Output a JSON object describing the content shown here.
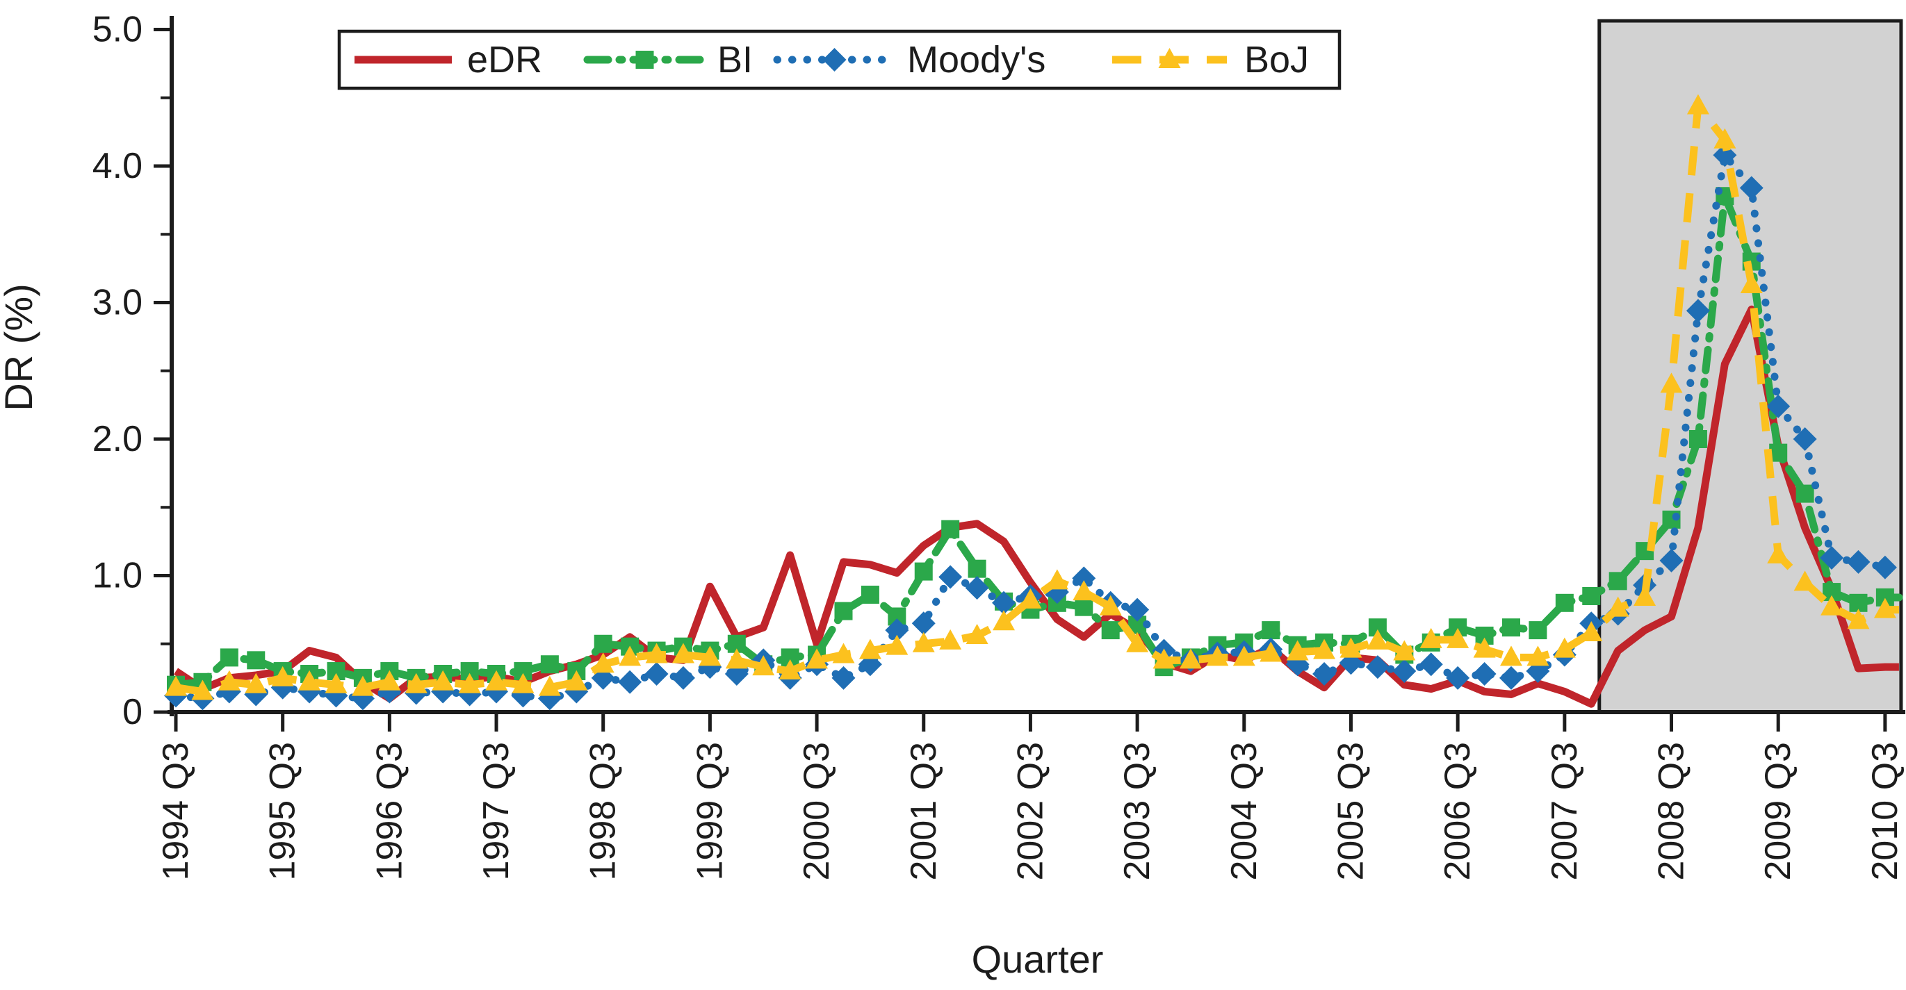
{
  "chart_data": {
    "type": "line",
    "title": "",
    "xlabel": "Quarter",
    "ylabel": "DR (%)",
    "ylim": [
      0,
      5
    ],
    "y_tick_labels": [
      "0",
      "1.0",
      "2.0",
      "3.0",
      "4.0",
      "5.0"
    ],
    "y_tick_values": [
      0,
      1,
      2,
      3,
      4,
      5
    ],
    "y_minor_tick_values": [
      0.5,
      1.5,
      2.5,
      3.5,
      4.5
    ],
    "x_tick_labels": [
      "1994 Q3",
      "1995 Q3",
      "1996 Q3",
      "1997 Q3",
      "1998 Q3",
      "1999 Q3",
      "2000 Q3",
      "2001 Q3",
      "2002 Q3",
      "2003 Q3",
      "2004 Q3",
      "2005 Q3",
      "2006 Q3",
      "2007 Q3",
      "2008 Q3",
      "2009 Q3",
      "2010 Q3"
    ],
    "x_unit": "quarter",
    "x_start": "1994 Q3",
    "x_end": "2010 Q3",
    "grid": false,
    "legend_position": "top-left-inside",
    "highlight_region": {
      "name": "crisis-period",
      "from_index": 53.3,
      "to_index": 64.6,
      "fill": "#d2d2d2",
      "border": "#1c1c1c"
    },
    "series": [
      {
        "name": "eDR",
        "color": "#c0252b",
        "line_style": "solid",
        "marker": "none",
        "values": [
          0.3,
          0.17,
          0.25,
          0.27,
          0.3,
          0.45,
          0.4,
          0.22,
          0.1,
          0.25,
          0.26,
          0.24,
          0.26,
          0.22,
          0.3,
          0.35,
          0.42,
          0.55,
          0.4,
          0.38,
          0.92,
          0.55,
          0.62,
          1.15,
          0.5,
          1.1,
          1.08,
          1.02,
          1.22,
          1.35,
          1.38,
          1.25,
          0.95,
          0.68,
          0.55,
          0.72,
          0.6,
          0.36,
          0.3,
          0.42,
          0.38,
          0.47,
          0.3,
          0.18,
          0.4,
          0.38,
          0.2,
          0.17,
          0.23,
          0.15,
          0.13,
          0.21,
          0.15,
          0.06,
          0.45,
          0.6,
          0.7,
          1.35,
          2.55,
          2.95,
          1.95,
          1.35,
          0.9,
          0.32,
          0.33
        ]
      },
      {
        "name": "BI",
        "color": "#2ba84a",
        "line_style": "dash-dot",
        "marker": "square",
        "values": [
          0.2,
          0.22,
          0.4,
          0.38,
          0.3,
          0.28,
          0.3,
          0.25,
          0.3,
          0.25,
          0.28,
          0.3,
          0.28,
          0.3,
          0.35,
          0.3,
          0.5,
          0.48,
          0.45,
          0.48,
          0.45,
          0.5,
          0.35,
          0.4,
          0.42,
          0.74,
          0.86,
          0.7,
          1.03,
          1.34,
          1.05,
          0.81,
          0.75,
          0.8,
          0.77,
          0.6,
          0.64,
          0.33,
          0.4,
          0.49,
          0.51,
          0.6,
          0.49,
          0.51,
          0.5,
          0.62,
          0.42,
          0.51,
          0.62,
          0.56,
          0.62,
          0.6,
          0.8,
          0.85,
          0.96,
          1.18,
          1.41,
          2.0,
          3.78,
          3.3,
          1.9,
          1.6,
          0.88,
          0.8,
          0.84
        ]
      },
      {
        "name": "Moody's",
        "color": "#1f6eb4",
        "line_style": "dotted",
        "marker": "diamond",
        "values": [
          0.12,
          0.1,
          0.15,
          0.13,
          0.18,
          0.15,
          0.12,
          0.1,
          0.15,
          0.14,
          0.15,
          0.13,
          0.15,
          0.12,
          0.1,
          0.15,
          0.25,
          0.22,
          0.28,
          0.25,
          0.33,
          0.28,
          0.38,
          0.25,
          0.35,
          0.25,
          0.35,
          0.6,
          0.65,
          0.99,
          0.91,
          0.8,
          0.85,
          0.88,
          0.98,
          0.8,
          0.75,
          0.45,
          0.38,
          0.43,
          0.44,
          0.46,
          0.35,
          0.28,
          0.36,
          0.33,
          0.3,
          0.35,
          0.25,
          0.28,
          0.25,
          0.3,
          0.42,
          0.65,
          0.72,
          0.93,
          1.11,
          2.94,
          4.08,
          3.84,
          2.24,
          2.0,
          1.13,
          1.1,
          1.06
        ]
      },
      {
        "name": "BoJ",
        "color": "#fcc11e",
        "line_style": "dashed",
        "marker": "triangle",
        "values": [
          0.18,
          0.15,
          0.22,
          0.2,
          0.25,
          0.22,
          0.2,
          0.18,
          0.22,
          0.2,
          0.22,
          0.2,
          0.22,
          0.2,
          0.18,
          0.22,
          0.35,
          0.4,
          0.42,
          0.42,
          0.4,
          0.38,
          0.33,
          0.3,
          0.38,
          0.42,
          0.45,
          0.48,
          0.5,
          0.52,
          0.56,
          0.66,
          0.82,
          0.96,
          0.88,
          0.77,
          0.5,
          0.38,
          0.38,
          0.4,
          0.4,
          0.43,
          0.44,
          0.45,
          0.46,
          0.52,
          0.44,
          0.53,
          0.53,
          0.46,
          0.4,
          0.4,
          0.46,
          0.58,
          0.76,
          0.84,
          2.4,
          4.44,
          4.19,
          3.13,
          1.15,
          0.95,
          0.77,
          0.67,
          0.75
        ]
      }
    ]
  }
}
